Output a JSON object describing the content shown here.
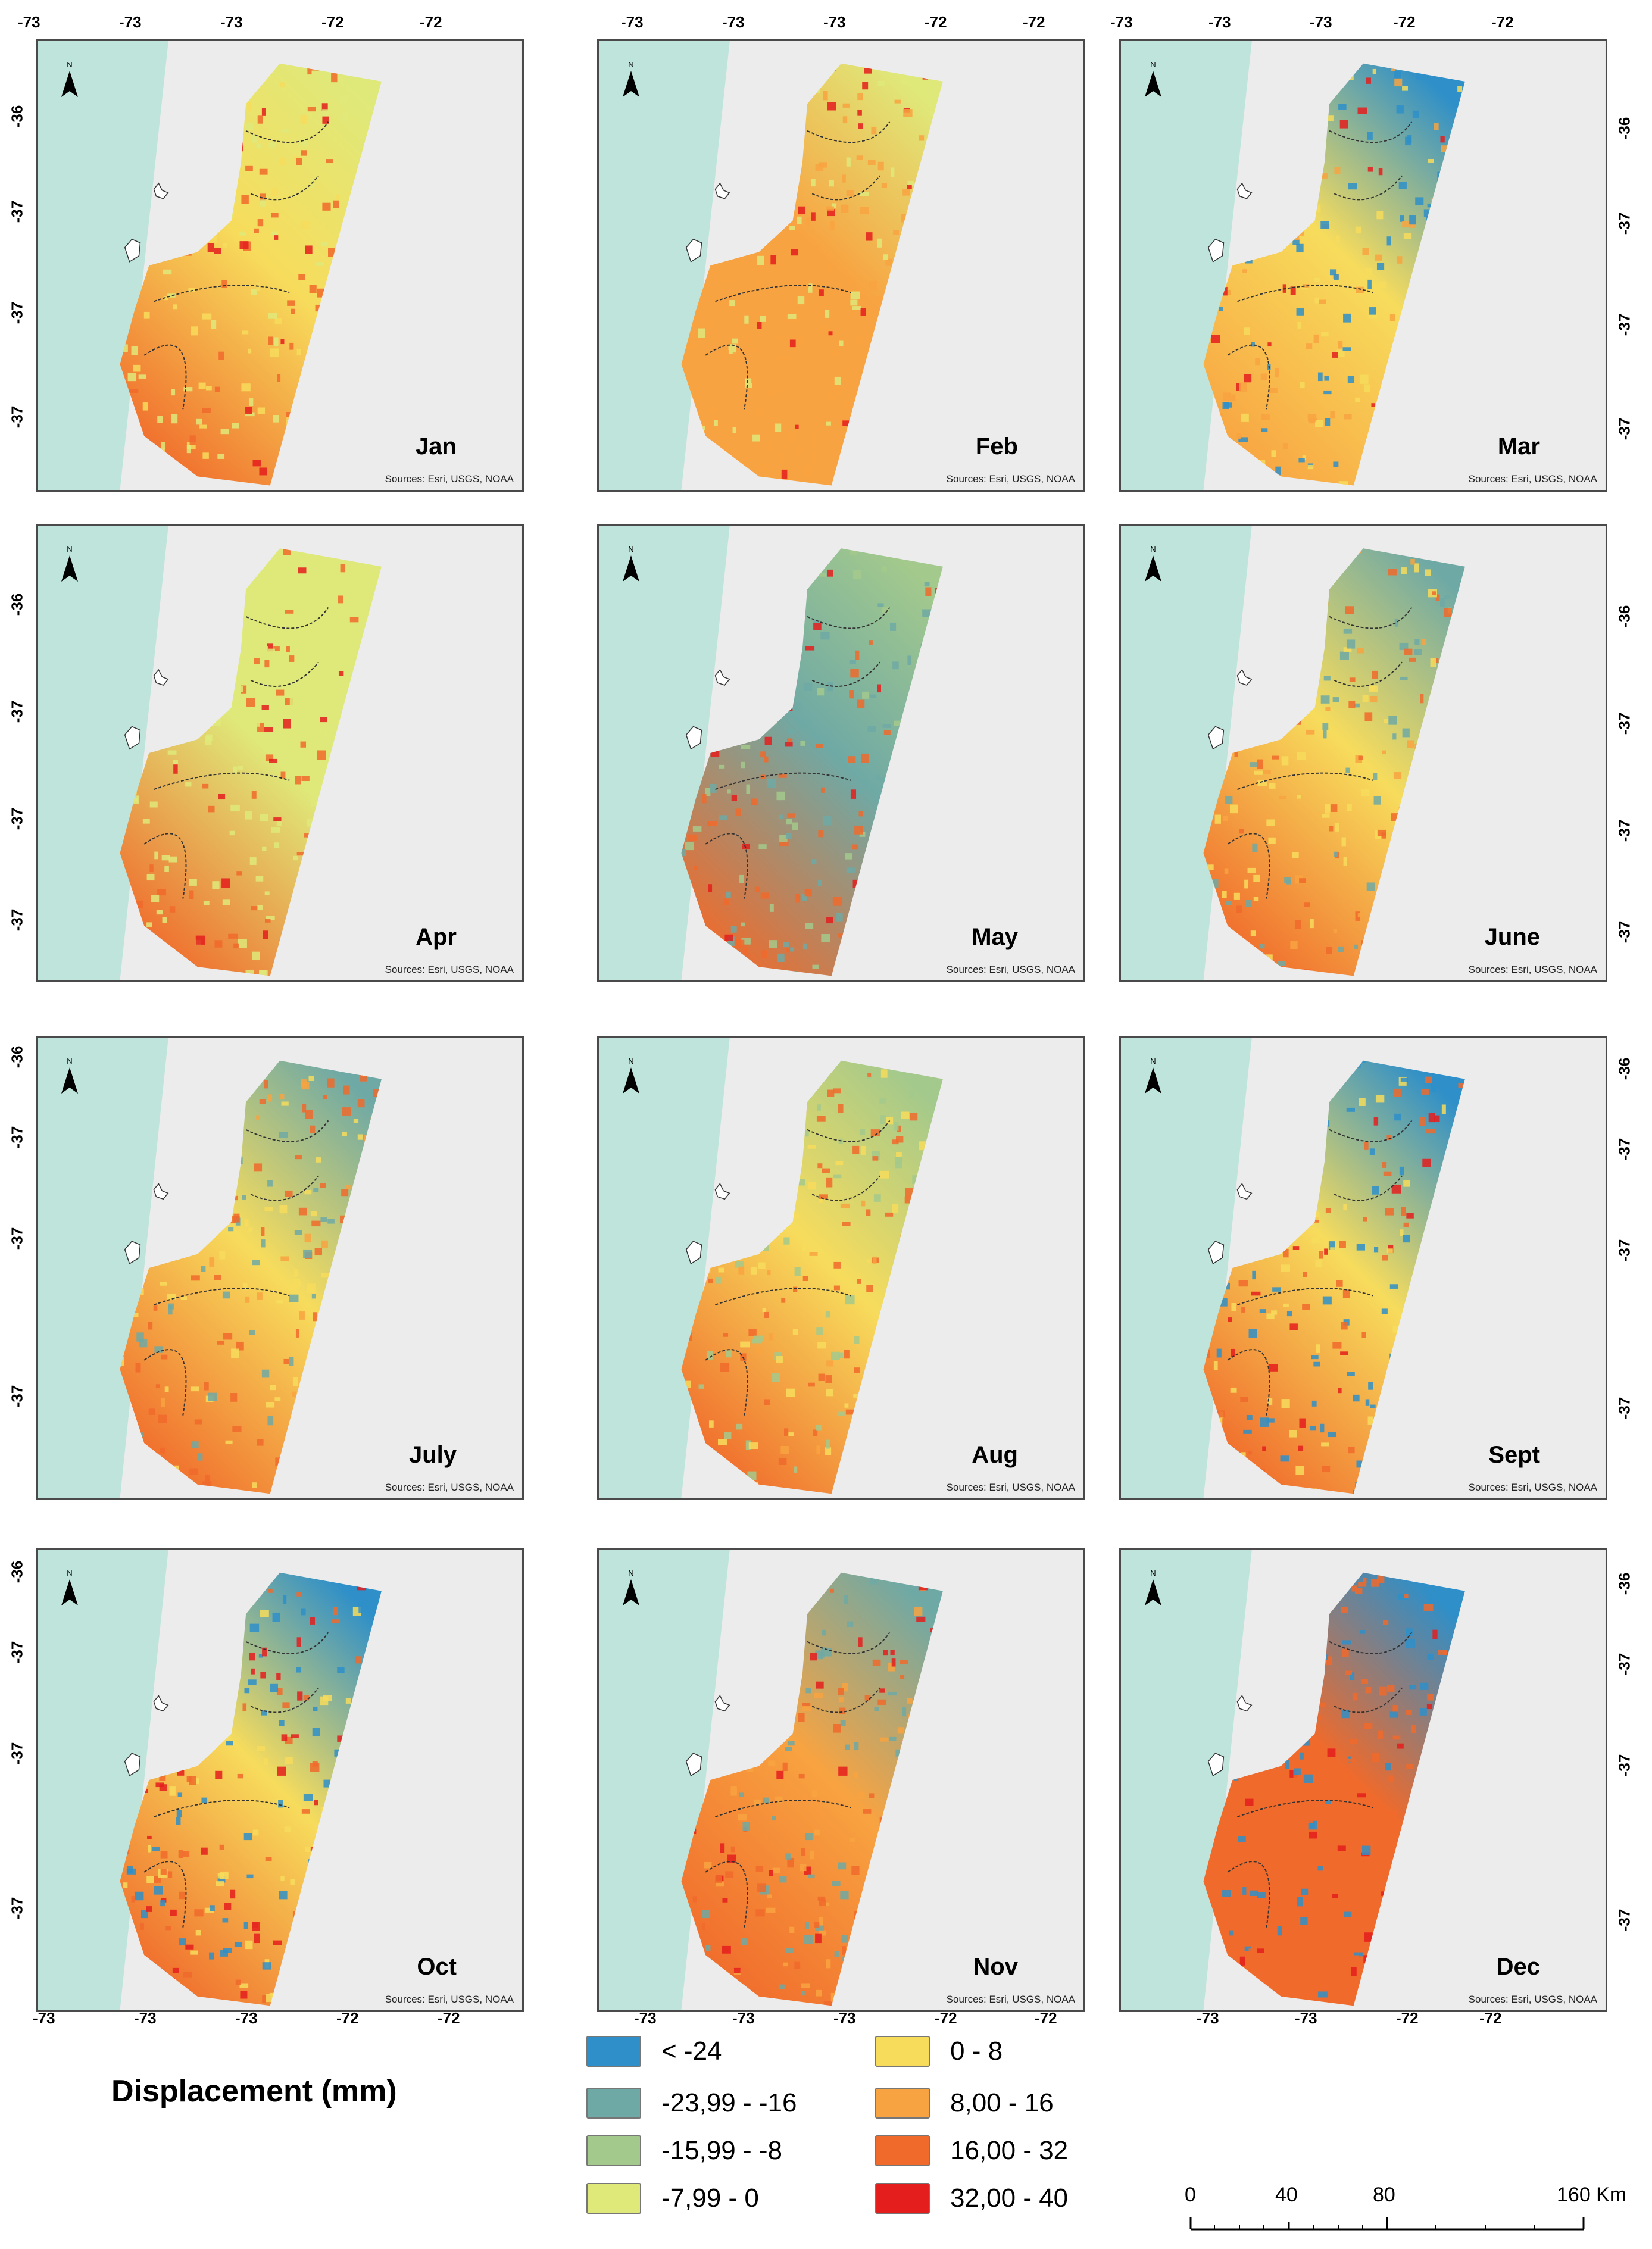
{
  "panels": [
    {
      "month": "Jan",
      "source": "Sources: Esri, USGS, NOAA"
    },
    {
      "month": "Feb",
      "source": "Sources: Esri, USGS, NOAA"
    },
    {
      "month": "Mar",
      "source": "Sources: Esri, USGS, NOAA"
    },
    {
      "month": "Apr",
      "source": "Sources: Esri, USGS, NOAA"
    },
    {
      "month": "May",
      "source": "Sources: Esri, USGS, NOAA"
    },
    {
      "month": "June",
      "source": "Sources: Esri, USGS, NOAA"
    },
    {
      "month": "July",
      "source": "Sources: Esri, USGS, NOAA"
    },
    {
      "month": "Aug",
      "source": "Sources: Esri, USGS, NOAA"
    },
    {
      "month": "Sept",
      "source": "Sources: Esri, USGS, NOAA"
    },
    {
      "month": "Oct",
      "source": "Sources: Esri, USGS, NOAA"
    },
    {
      "month": "Nov",
      "source": "Sources: Esri, USGS, NOAA"
    },
    {
      "month": "Dec",
      "source": "Sources: Esri, USGS, NOAA"
    }
  ],
  "north_label": "N",
  "lon_ticks": [
    "-73",
    "-73",
    "-73",
    "-72",
    "-72"
  ],
  "lat_ticks": [
    "-36",
    "-37",
    "-37",
    "-37"
  ],
  "legend": {
    "title": "Displacement (mm)",
    "classes": [
      {
        "label": "< -24",
        "color": "#2e8fc9"
      },
      {
        "label": "-23,99 - -16",
        "color": "#6fa9a5"
      },
      {
        "label": "-15,99 - -8",
        "color": "#a3c98c"
      },
      {
        "label": "-7,99 - 0",
        "color": "#dfe97a"
      },
      {
        "label": "0 - 8",
        "color": "#f7dc5c"
      },
      {
        "label": "8,00 - 16",
        "color": "#f8a341"
      },
      {
        "label": "16,00 - 32",
        "color": "#f06a2b"
      },
      {
        "label": "32,00 - 40",
        "color": "#e41d1d"
      }
    ]
  },
  "scale": {
    "labels": [
      "0",
      "40",
      "80",
      "160 Km"
    ]
  }
}
